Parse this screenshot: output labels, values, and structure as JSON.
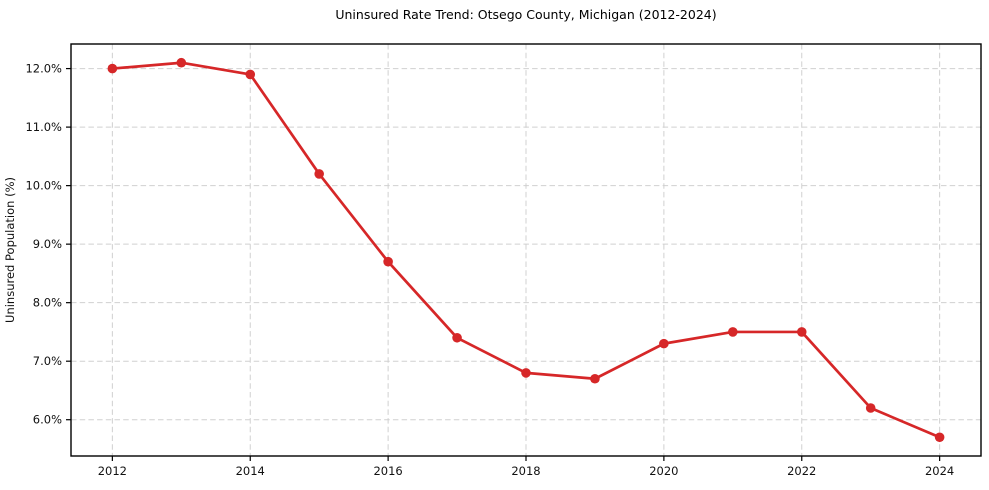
{
  "chart_data": {
    "type": "line",
    "title": "Uninsured Rate Trend: Otsego County, Michigan (2012-2024)",
    "xlabel": "",
    "ylabel": "Uninsured Population (%)",
    "x": [
      2012,
      2013,
      2014,
      2015,
      2016,
      2017,
      2018,
      2019,
      2020,
      2021,
      2022,
      2023,
      2024
    ],
    "values": [
      12.0,
      12.1,
      11.9,
      10.2,
      8.7,
      7.4,
      6.8,
      6.7,
      7.3,
      7.5,
      7.5,
      6.2,
      5.7
    ],
    "value_unit": "%",
    "xlim": [
      2011.4,
      2024.6
    ],
    "ylim": [
      5.38,
      12.42
    ],
    "xticks": [
      2012,
      2014,
      2016,
      2018,
      2020,
      2022,
      2024
    ],
    "xtick_labels": [
      "2012",
      "2014",
      "2016",
      "2018",
      "2020",
      "2022",
      "2024"
    ],
    "yticks": [
      6,
      7,
      8,
      9,
      10,
      11,
      12
    ],
    "ytick_labels": [
      "6.0%",
      "7.0%",
      "8.0%",
      "9.0%",
      "10.0%",
      "11.0%",
      "12.0%"
    ],
    "grid": true,
    "grid_style": "dashed",
    "legend_position": "none",
    "marker": "circle",
    "colors": {
      "line": "#d62728",
      "marker": "#d62728",
      "grid": "#d0d0d0",
      "axis": "#000000",
      "text": "#111111",
      "background": "#ffffff"
    }
  }
}
